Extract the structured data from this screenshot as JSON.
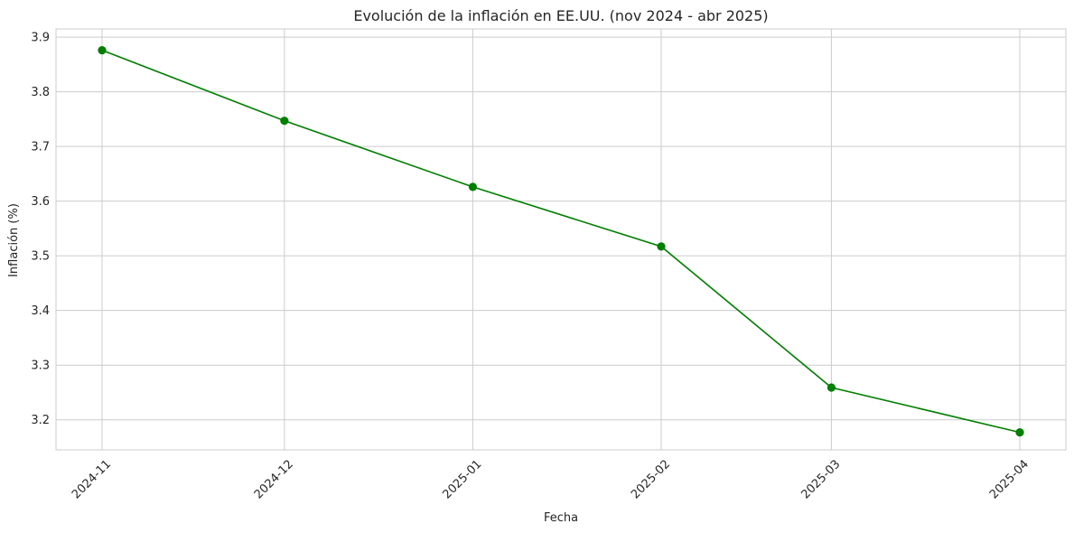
{
  "chart_data": {
    "type": "line",
    "title": "Evolución de la inflación en EE.UU. (nov 2024 - abr 2025)",
    "xlabel": "Fecha",
    "ylabel": "Inflación (%)",
    "x": [
      "2024-11-01",
      "2024-12-01",
      "2025-01-01",
      "2025-02-01",
      "2025-03-01",
      "2025-04-01"
    ],
    "x_tick_labels": [
      "2024-11",
      "2024-12",
      "2025-01",
      "2025-02",
      "2025-03",
      "2025-04"
    ],
    "y_ticks": [
      "3.2",
      "3.3",
      "3.4",
      "3.5",
      "3.6",
      "3.7",
      "3.8",
      "3.9"
    ],
    "ylim": [
      3.145,
      3.915
    ],
    "grid": true,
    "series": [
      {
        "values": [
          3.876,
          3.747,
          3.626,
          3.517,
          3.259,
          3.177
        ],
        "color": "#008000",
        "marker": "circle"
      }
    ]
  }
}
